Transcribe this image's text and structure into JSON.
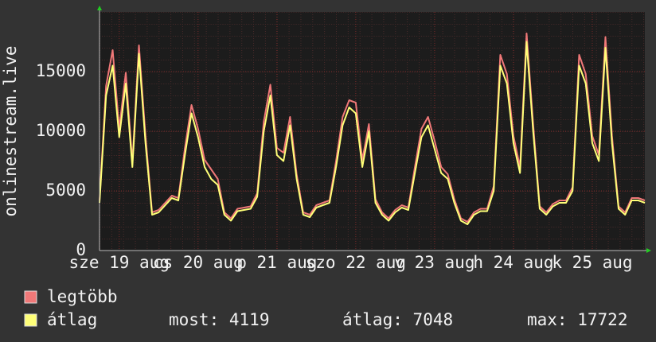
{
  "chart_data": {
    "type": "line",
    "y_label": "onlinestream.live",
    "x": [
      6,
      8,
      10,
      12,
      14,
      16,
      18,
      20,
      22,
      24,
      26,
      28,
      30,
      32,
      34,
      36,
      38,
      40,
      42,
      44,
      46,
      48,
      50,
      52,
      54,
      56,
      58,
      60,
      62,
      64,
      66,
      68,
      70,
      72,
      74,
      76,
      78,
      80,
      82,
      84,
      86,
      88,
      90,
      92,
      94,
      96,
      98,
      100,
      102,
      104,
      106,
      108,
      110,
      112,
      114,
      116,
      118,
      120,
      122,
      124,
      126,
      128,
      130,
      132,
      134,
      136,
      138,
      140,
      142,
      144,
      146,
      148,
      150,
      152,
      154,
      156,
      158,
      160,
      162,
      164,
      166,
      168,
      170,
      172
    ],
    "xlim": [
      6,
      172
    ],
    "xticks": [
      {
        "value": 12,
        "label": "sze 19 aug"
      },
      {
        "value": 36,
        "label": "cs 20 aug"
      },
      {
        "value": 60,
        "label": "p 21 aug"
      },
      {
        "value": 84,
        "label": "szo 22 aug"
      },
      {
        "value": 108,
        "label": "v 23 aug"
      },
      {
        "value": 132,
        "label": "h 24 aug"
      },
      {
        "value": 156,
        "label": "k 25 aug"
      }
    ],
    "ylim": [
      0,
      20000
    ],
    "yticks": [
      0,
      5000,
      10000,
      15000
    ],
    "grid": true,
    "series": [
      {
        "name": "legtöbb",
        "color": "#f07878",
        "values": [
          4200,
          13800,
          16800,
          10200,
          14900,
          7400,
          17200,
          9600,
          3200,
          3400,
          4000,
          4600,
          4400,
          8600,
          12200,
          10200,
          7600,
          6800,
          6000,
          3200,
          2700,
          3500,
          3600,
          3700,
          4800,
          10800,
          13900,
          8600,
          8200,
          11200,
          6400,
          3200,
          3000,
          3800,
          4000,
          4200,
          7500,
          11200,
          12600,
          12400,
          7600,
          10600,
          4300,
          3200,
          2700,
          3400,
          3800,
          3600,
          7000,
          10200,
          11200,
          9200,
          7000,
          6400,
          4300,
          2700,
          2400,
          3200,
          3500,
          3500,
          5400,
          16400,
          14800,
          9600,
          7000,
          18200,
          10600,
          3700,
          3200,
          3900,
          4200,
          4200,
          5300,
          16400,
          14800,
          9600,
          8000,
          17900,
          9600,
          3700,
          3200,
          4400,
          4400,
          4200
        ]
      },
      {
        "name": "átlag",
        "color": "#ffff78",
        "values": [
          4000,
          13000,
          15500,
          9500,
          14000,
          7000,
          16500,
          9000,
          3000,
          3200,
          3800,
          4400,
          4200,
          8000,
          11500,
          9500,
          7000,
          6000,
          5500,
          3000,
          2500,
          3300,
          3400,
          3500,
          4500,
          10000,
          13000,
          8000,
          7500,
          10500,
          6000,
          3000,
          2800,
          3600,
          3800,
          4000,
          7000,
          10500,
          12000,
          11500,
          7000,
          10000,
          4000,
          3000,
          2500,
          3200,
          3600,
          3400,
          6500,
          9500,
          10500,
          8500,
          6500,
          6000,
          4000,
          2500,
          2200,
          3000,
          3300,
          3300,
          5000,
          15500,
          14000,
          9000,
          6500,
          17500,
          10000,
          3500,
          3000,
          3700,
          4000,
          4000,
          5000,
          15500,
          14000,
          9000,
          7500,
          17000,
          9000,
          3500,
          3000,
          4200,
          4200,
          4000
        ]
      }
    ],
    "stats": [
      {
        "label": "most:",
        "value": 4119
      },
      {
        "label": "átlag:",
        "value": 7048
      },
      {
        "label": "max:",
        "value": 17722
      }
    ]
  }
}
